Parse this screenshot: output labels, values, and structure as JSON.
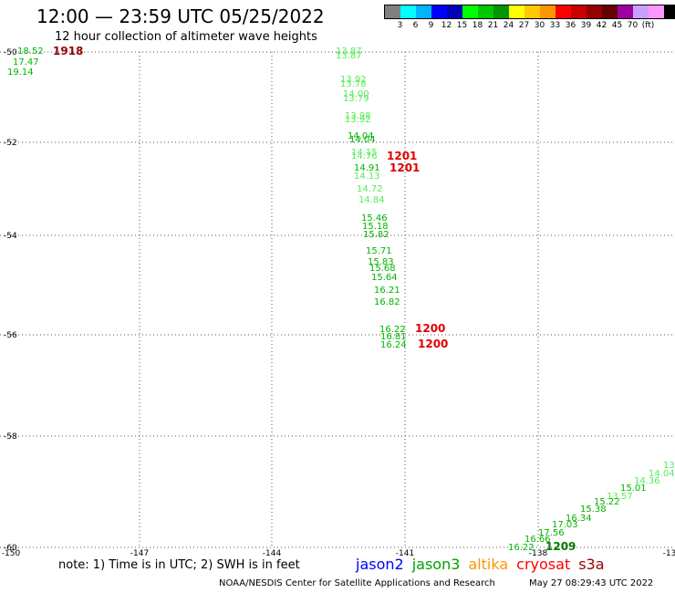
{
  "title": "12:00 — 23:59 UTC 05/25/2022",
  "subtitle": "12 hour collection of altimeter wave heights",
  "legend": {
    "colors": [
      "#808080",
      "#00ffff",
      "#00b4ff",
      "#0000ff",
      "#0000b4",
      "#00ff00",
      "#00c800",
      "#009600",
      "#ffff00",
      "#ffc800",
      "#ff9600",
      "#ff0000",
      "#c80000",
      "#960000",
      "#640000",
      "#a000a0",
      "#c8a0ff",
      "#ff96ff",
      "#000000"
    ],
    "labels": [
      "3",
      "6",
      "9",
      "12",
      "15",
      "18",
      "21",
      "24",
      "27",
      "30",
      "33",
      "36",
      "39",
      "42",
      "45",
      "70",
      "(ft)"
    ]
  },
  "axes": {
    "lon_ticks": [
      "-150",
      "-147",
      "-144",
      "-141",
      "-138",
      "-13"
    ],
    "lat_ticks": [
      "-50",
      "-52",
      "-54",
      "-56",
      "-58",
      "-60"
    ]
  },
  "wave_heights": [
    {
      "v": "18.52",
      "c": "#00b400"
    },
    {
      "v": "17.47",
      "c": "#00b400"
    },
    {
      "v": "19.14",
      "c": "#00b400"
    },
    {
      "v": "13.87",
      "c": "#55ee55"
    },
    {
      "v": "13.87",
      "c": "#55ee55"
    },
    {
      "v": "13.92",
      "c": "#55ee55"
    },
    {
      "v": "13.78",
      "c": "#55ee55"
    },
    {
      "v": "14.00",
      "c": "#55ee55"
    },
    {
      "v": "13.79",
      "c": "#55ee55"
    },
    {
      "v": "13.98",
      "c": "#55ee55"
    },
    {
      "v": "13.92",
      "c": "#55ee55"
    },
    {
      "v": "14.04",
      "c": "#00b400"
    },
    {
      "v": "14.04",
      "c": "#00b400"
    },
    {
      "v": "14.15",
      "c": "#55ee55"
    },
    {
      "v": "14.76",
      "c": "#55ee55"
    },
    {
      "v": "14.91",
      "c": "#00b400"
    },
    {
      "v": "14.13",
      "c": "#55ee55"
    },
    {
      "v": "14.72",
      "c": "#55ee55"
    },
    {
      "v": "14.84",
      "c": "#55ee55"
    },
    {
      "v": "15.46",
      "c": "#00b400"
    },
    {
      "v": "15.18",
      "c": "#00b400"
    },
    {
      "v": "15.82",
      "c": "#00b400"
    },
    {
      "v": "15.71",
      "c": "#00b400"
    },
    {
      "v": "15.83",
      "c": "#00b400"
    },
    {
      "v": "15.68",
      "c": "#00b400"
    },
    {
      "v": "15.64",
      "c": "#00b400"
    },
    {
      "v": "16.21",
      "c": "#00b400"
    },
    {
      "v": "16.82",
      "c": "#00b400"
    },
    {
      "v": "16.22",
      "c": "#00b400"
    },
    {
      "v": "16.81",
      "c": "#00b400"
    },
    {
      "v": "16.24",
      "c": "#00b400"
    },
    {
      "v": "13",
      "c": "#55ee55"
    },
    {
      "v": "14.04",
      "c": "#55ee55"
    },
    {
      "v": "14.36",
      "c": "#55ee55"
    },
    {
      "v": "15.01",
      "c": "#00b400"
    },
    {
      "v": "13.57",
      "c": "#55ee55"
    },
    {
      "v": "15.22",
      "c": "#00b400"
    },
    {
      "v": "15.38",
      "c": "#00b400"
    },
    {
      "v": "16.34",
      "c": "#00b400"
    },
    {
      "v": "17.03",
      "c": "#00b400"
    },
    {
      "v": "17.56",
      "c": "#00b400"
    },
    {
      "v": "16.66",
      "c": "#00b400"
    },
    {
      "v": "16.22",
      "c": "#00b400"
    }
  ],
  "pass_labels": [
    {
      "v": "1918",
      "c": "#960000"
    },
    {
      "v": "1201",
      "c": "#e00000"
    },
    {
      "v": "1201",
      "c": "#e00000"
    },
    {
      "v": "1200",
      "c": "#e00000"
    },
    {
      "v": "1200",
      "c": "#e00000"
    },
    {
      "v": "1209",
      "c": "#007800"
    }
  ],
  "footer_note": "note: 1) Time is in UTC; 2) SWH is in feet",
  "satellites": [
    {
      "name": "jason2",
      "color": "#0000ff"
    },
    {
      "name": "jason3",
      "color": "#00a000"
    },
    {
      "name": "altika",
      "color": "#ff9600"
    },
    {
      "name": "cryosat",
      "color": "#ff0000"
    },
    {
      "name": "s3a",
      "color": "#960000"
    }
  ],
  "credit": "NOAA/NESDIS Center for Satellite Applications and Research",
  "timestamp": "May 27 08:29:43 UTC 2022"
}
